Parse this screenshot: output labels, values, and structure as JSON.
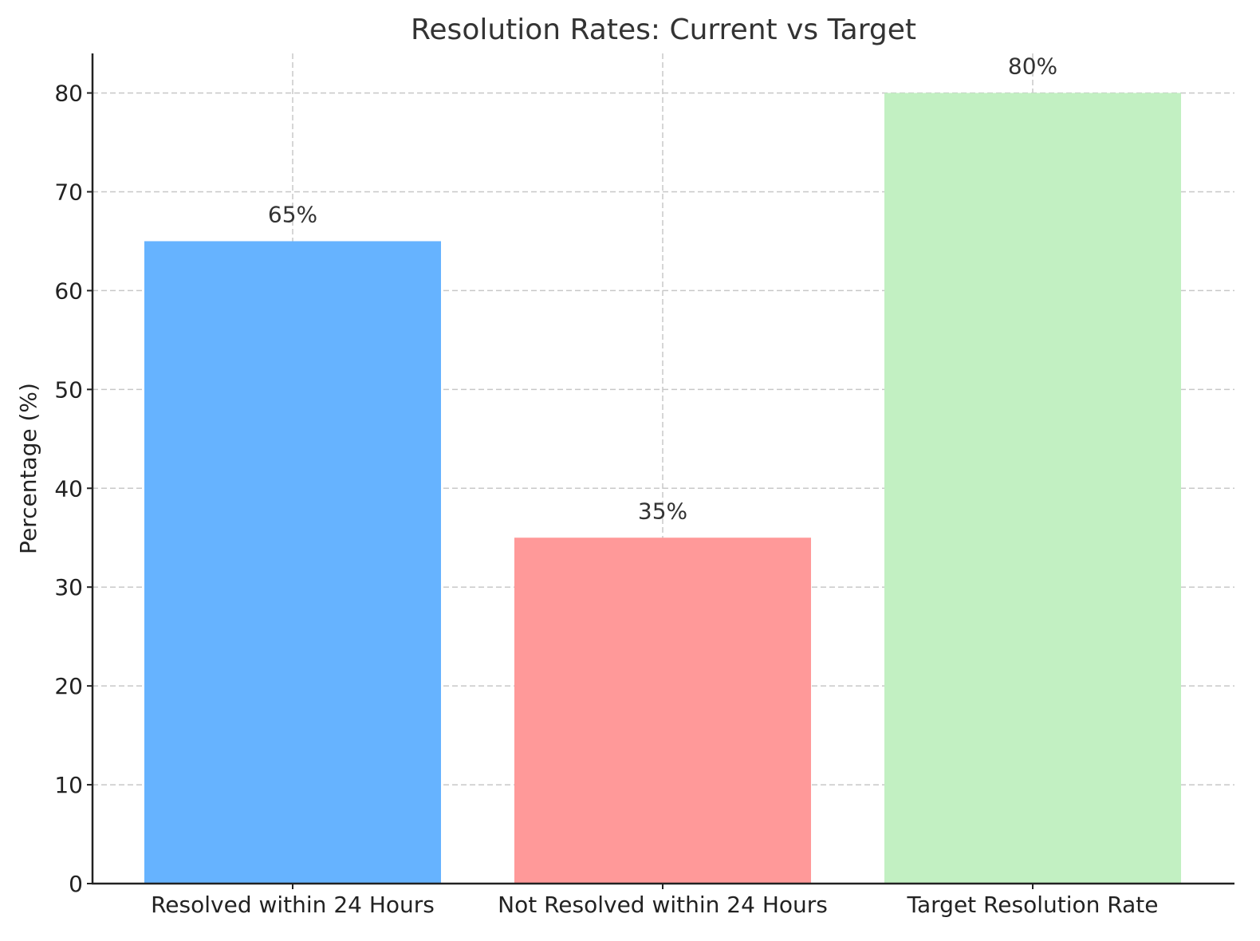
{
  "chart_data": {
    "type": "bar",
    "title": "Resolution Rates: Current vs Target",
    "xlabel": "",
    "ylabel": "Percentage (%)",
    "categories": [
      "Resolved within 24 Hours",
      "Not Resolved within 24 Hours",
      "Target Resolution Rate"
    ],
    "values": [
      65,
      35,
      80
    ],
    "value_labels": [
      "65%",
      "35%",
      "80%"
    ],
    "colors": [
      "#66b3ff",
      "#ff9999",
      "#c2f0c2"
    ],
    "ylim": [
      0,
      84
    ],
    "yticks": [
      0,
      10,
      20,
      30,
      40,
      50,
      60,
      70,
      80
    ],
    "grid": true,
    "grid_style": "dashed",
    "legend": "none"
  }
}
